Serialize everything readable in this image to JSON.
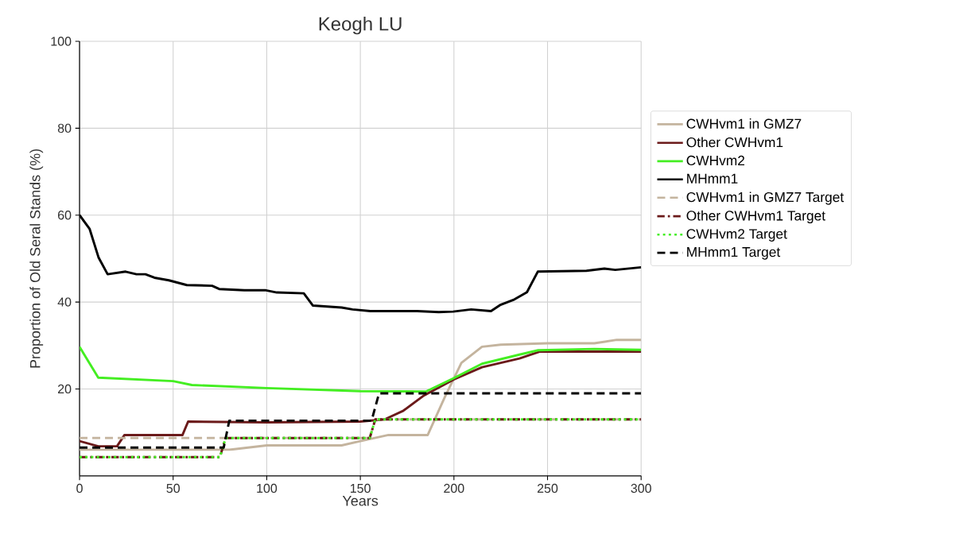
{
  "chart_data": {
    "type": "line",
    "title": "Keogh LU",
    "xlabel": "Years",
    "ylabel": "Proportion of Old Seral Stands (%)",
    "xlim": [
      0,
      300
    ],
    "ylim": [
      0,
      100
    ],
    "xticks": [
      0,
      50,
      100,
      150,
      200,
      250,
      300
    ],
    "yticks": [
      20,
      40,
      60,
      80,
      100
    ],
    "grid": true,
    "legend": "top right",
    "marker": "none",
    "series": [
      {
        "name": "CWHvm1 in GMZ7",
        "color": "#c4b49e",
        "line_style": "solid",
        "x": [
          0,
          80,
          100,
          140,
          150,
          165,
          186,
          195,
          204,
          215,
          225,
          250,
          275,
          287,
          300
        ],
        "values": [
          6,
          6,
          7,
          7,
          8,
          9.4,
          9.4,
          18,
          26,
          29.7,
          30.2,
          30.5,
          30.5,
          31.3,
          31.3
        ]
      },
      {
        "name": "Other CWHvm1",
        "color": "#6b1a1a",
        "line_style": "solid",
        "x": [
          0,
          10,
          20,
          24,
          55,
          58,
          100,
          150,
          163,
          173,
          184,
          200,
          215,
          235,
          246,
          300
        ],
        "values": [
          8,
          6.8,
          6.8,
          9.4,
          9.4,
          12.5,
          12.3,
          12.5,
          13,
          15,
          18.5,
          22.2,
          25,
          27,
          28.6,
          28.6
        ]
      },
      {
        "name": "CWHvm2",
        "color": "#44ee22",
        "line_style": "solid",
        "x": [
          0,
          10,
          50,
          60,
          100,
          150,
          185,
          200,
          215,
          235,
          245,
          275,
          300
        ],
        "values": [
          29.7,
          22.6,
          21.8,
          20.9,
          20.2,
          19.5,
          19.4,
          22.5,
          25.8,
          27.9,
          28.9,
          29.2,
          29
        ]
      },
      {
        "name": "MHmm1",
        "color": "#000000",
        "line_style": "solid",
        "x": [
          0,
          5.4,
          10.2,
          15,
          24.6,
          30.4,
          35.2,
          40,
          47.7,
          57.3,
          70.8,
          74.6,
          88,
          99.6,
          105.4,
          119.8,
          124.6,
          140,
          145.8,
          155.4,
          180.4,
          191.9,
          199.6,
          209.2,
          219.8,
          224.6,
          232.3,
          239,
          244.8,
          270.8,
          280.4,
          286.2,
          300
        ],
        "values": [
          60,
          56.8,
          50.2,
          46.4,
          47,
          46.4,
          46.4,
          45.6,
          45,
          43.9,
          43.75,
          43,
          42.7,
          42.7,
          42.2,
          42,
          39.2,
          38.75,
          38.3,
          37.9,
          37.9,
          37.7,
          37.8,
          38.3,
          37.9,
          39.3,
          40.6,
          42.25,
          47,
          47.2,
          47.7,
          47.4,
          48
        ]
      },
      {
        "name": "CWHvm1 in GMZ7 Target",
        "color": "#c4b49e",
        "line_style": "dashed",
        "x": [
          0,
          155,
          158,
          300
        ],
        "values": [
          8.7,
          8.7,
          13,
          13
        ]
      },
      {
        "name": "Other CWHvm1 Target",
        "color": "#6b1a1a",
        "line_style": "dashdot",
        "x": [
          0,
          75,
          78,
          155,
          158,
          300
        ],
        "values": [
          4.3,
          4.3,
          8.7,
          8.7,
          13,
          13
        ]
      },
      {
        "name": "CWHvm2 Target",
        "color": "#44ee22",
        "line_style": "dotted",
        "x": [
          0,
          75,
          78,
          155,
          158,
          300
        ],
        "values": [
          4.3,
          4.3,
          8.7,
          8.7,
          13,
          13
        ]
      },
      {
        "name": "MHmm1 Target",
        "color": "#000000",
        "line_style": "dashed",
        "x": [
          0,
          77,
          80,
          156,
          160,
          300
        ],
        "values": [
          6.5,
          6.5,
          12.7,
          12.7,
          19,
          19
        ]
      }
    ]
  }
}
